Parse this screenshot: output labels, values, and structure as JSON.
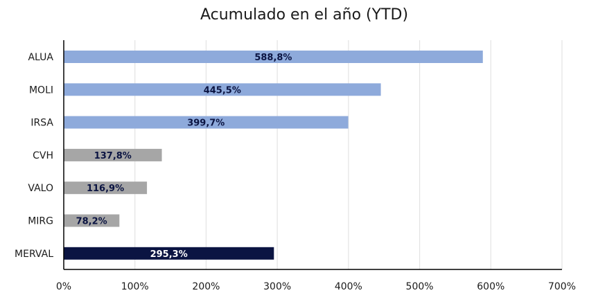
{
  "chart_data": {
    "type": "bar",
    "orientation": "horizontal",
    "title": "Acumulado en el año (YTD)",
    "xlabel": "",
    "ylabel": "",
    "xlim": [
      0,
      700
    ],
    "x_ticks": [
      0,
      100,
      200,
      300,
      400,
      500,
      600,
      700
    ],
    "x_tick_labels": [
      "0%",
      "100%",
      "200%",
      "300%",
      "400%",
      "500%",
      "600%",
      "700%"
    ],
    "grid": "vertical",
    "legend": "none",
    "categories": [
      "ALUA",
      "MOLI",
      "IRSA",
      "CVH",
      "VALO",
      "MIRG",
      "MERVAL"
    ],
    "values": [
      588.8,
      445.5,
      399.7,
      137.8,
      116.9,
      78.2,
      295.3
    ],
    "data_labels": [
      "588,8%",
      "445,5%",
      "399,7%",
      "137,8%",
      "116,9%",
      "78,2%",
      "295,3%"
    ],
    "bar_colors": [
      "#8eaadb",
      "#8eaadb",
      "#8eaadb",
      "#a6a6a6",
      "#a6a6a6",
      "#a6a6a6",
      "#0b1442"
    ],
    "label_colors": [
      "#0b1442",
      "#0b1442",
      "#0b1442",
      "#0b1442",
      "#0b1442",
      "#0b1442",
      "#ffffff"
    ]
  }
}
